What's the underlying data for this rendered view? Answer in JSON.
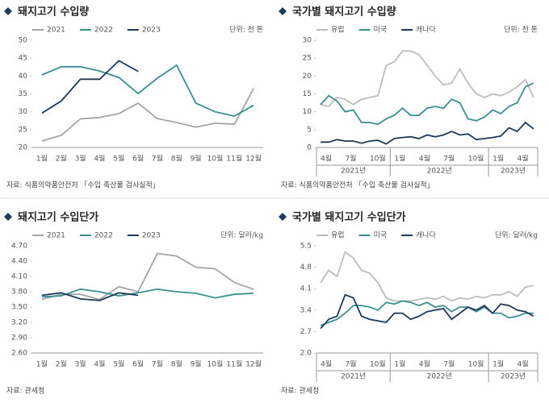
{
  "chart_data": [
    {
      "type": "line",
      "title": "돼지고기 수입량",
      "unit": "단위: 천 톤",
      "source": "자료: 식품의약품안전처 「수입 축산물 검사실적」",
      "categories": [
        "1월",
        "2월",
        "3월",
        "4월",
        "5월",
        "6월",
        "7월",
        "8월",
        "9월",
        "10월",
        "11월",
        "12월"
      ],
      "series": [
        {
          "name": "2021",
          "color": "#a6a6a6",
          "values": [
            21.8,
            23.4,
            28,
            28.4,
            29.5,
            32.4,
            28.1,
            27,
            25.7,
            26.8,
            26.5,
            36.5
          ]
        },
        {
          "name": "2022",
          "color": "#3a8f8f",
          "values": [
            40.3,
            42.6,
            42.6,
            41.4,
            39.6,
            35.1,
            39.4,
            43,
            32.4,
            30,
            28.8,
            31.8
          ]
        },
        {
          "name": "2023",
          "color": "#1f3a5a",
          "values": [
            29.6,
            33,
            39.1,
            39.1,
            44.3,
            41.3,
            null,
            null,
            null,
            null,
            null,
            null
          ]
        }
      ],
      "ylim": [
        20,
        50
      ],
      "yticks": [
        20,
        25,
        30,
        35,
        40,
        45,
        50
      ],
      "grid": false
    },
    {
      "type": "line",
      "title": "국가별 돼지고기 수입량",
      "unit": "단위: 천 톤",
      "source": "자료: 식품의약품안전처 「수입 축산물 검사실적」",
      "categories": [
        "4월",
        null,
        null,
        "7월",
        null,
        null,
        "10월",
        null,
        null,
        "1월",
        null,
        null,
        "4월",
        null,
        null,
        "7월",
        null,
        null,
        "10월",
        null,
        null,
        "1월",
        null,
        null,
        "4월",
        null,
        null
      ],
      "year_labels": [
        "2021년",
        "2022년",
        "2023년"
      ],
      "series": [
        {
          "name": "유럽",
          "color": "#bdbdbd",
          "values": [
            12,
            11.5,
            14,
            13.5,
            12,
            13.5,
            14,
            14.5,
            23,
            24,
            27,
            27,
            26,
            23,
            20,
            17.5,
            18,
            22,
            18,
            15,
            14,
            15,
            14.5,
            15.5,
            17,
            19,
            14
          ]
        },
        {
          "name": "미국",
          "color": "#3a8f8f",
          "values": [
            12,
            14.5,
            13,
            10,
            10.5,
            7,
            7,
            6.5,
            8,
            9,
            11,
            9,
            9,
            11,
            11.5,
            11,
            13.5,
            12.5,
            8,
            7.5,
            8.5,
            10.5,
            9.5,
            11.5,
            12.5,
            17,
            18
          ]
        },
        {
          "name": "캐나다",
          "color": "#1f3a5a",
          "values": [
            1.5,
            1.5,
            2.2,
            1.8,
            1.8,
            1.2,
            1.8,
            2,
            1,
            2.5,
            2.8,
            3,
            2.5,
            3.5,
            3,
            3.5,
            4.5,
            3.5,
            3.8,
            2.2,
            2.5,
            2.8,
            3.2,
            5.5,
            4.5,
            7,
            5.2
          ]
        }
      ],
      "ylim": [
        0,
        30
      ],
      "yticks": [
        0,
        5,
        10,
        15,
        20,
        25,
        30
      ],
      "grid": false
    },
    {
      "type": "line",
      "title": "돼지고기 수입단가",
      "unit": "단위: 달러/kg",
      "source": "자료: 관세청",
      "categories": [
        "1월",
        "2월",
        "3월",
        "4월",
        "5월",
        "6월",
        "7월",
        "8월",
        "9월",
        "10월",
        "11월",
        "12월"
      ],
      "series": [
        {
          "name": "2021",
          "color": "#a6a6a6",
          "values": [
            3.65,
            3.75,
            3.75,
            3.65,
            3.9,
            3.8,
            4.55,
            4.5,
            4.28,
            4.25,
            3.98,
            3.85
          ]
        },
        {
          "name": "2022",
          "color": "#3a8f8f",
          "values": [
            3.7,
            3.72,
            3.85,
            3.8,
            3.72,
            3.78,
            3.85,
            3.8,
            3.77,
            3.68,
            3.75,
            3.77
          ]
        },
        {
          "name": "2023",
          "color": "#1f3a5a",
          "values": [
            3.73,
            3.78,
            3.66,
            3.63,
            3.78,
            3.73,
            null,
            null,
            null,
            null,
            null,
            null
          ]
        }
      ],
      "ylim": [
        2.6,
        4.7
      ],
      "yticks": [
        {
          "value": 2.6,
          "label": "2.60"
        },
        {
          "value": 2.9,
          "label": "2.90"
        },
        {
          "value": 3.2,
          "label": "3.20"
        },
        {
          "value": 3.5,
          "label": "3.50"
        },
        {
          "value": 3.8,
          "label": "3.80"
        },
        {
          "value": 4.1,
          "label": "4.10"
        },
        {
          "value": 4.4,
          "label": "4.40"
        },
        {
          "value": 4.7,
          "label": "4.70"
        }
      ],
      "grid": false
    },
    {
      "type": "line",
      "title": "국가별 돼지고기 수입단가",
      "unit": "단위: 달러/kg",
      "source": "자료: 관세청",
      "categories": [
        "4월",
        null,
        null,
        "7월",
        null,
        null,
        "10월",
        null,
        null,
        "1월",
        null,
        null,
        "4월",
        null,
        null,
        "7월",
        null,
        null,
        "10월",
        null,
        null,
        "1월",
        null,
        null,
        "4월",
        null,
        null
      ],
      "year_labels": [
        "2021년",
        "2022년",
        "2023년"
      ],
      "series": [
        {
          "name": "유럽",
          "color": "#bdbdbd",
          "values": [
            4.3,
            4.7,
            4.5,
            5.3,
            5.1,
            4.7,
            4.6,
            4.3,
            3.8,
            3.7,
            3.7,
            3.7,
            3.75,
            3.8,
            3.75,
            3.85,
            3.7,
            3.8,
            3.75,
            3.85,
            3.8,
            3.9,
            3.9,
            4,
            3.85,
            4.15,
            4.2
          ]
        },
        {
          "name": "미국",
          "color": "#3a8f8f",
          "values": [
            2.9,
            3,
            3.1,
            3.3,
            3.55,
            3.55,
            3.5,
            3.4,
            3.65,
            3.6,
            3.7,
            3.65,
            3.55,
            3.65,
            3.5,
            3.55,
            3.35,
            3.5,
            3.5,
            3.35,
            3.5,
            3.3,
            3.3,
            3.15,
            3.2,
            3.3,
            3.3
          ]
        },
        {
          "name": "캐나다",
          "color": "#1f3a5a",
          "values": [
            2.8,
            3.1,
            3.2,
            3.9,
            3.8,
            3.2,
            3.1,
            3.05,
            3,
            3.3,
            3.3,
            3.1,
            3.2,
            3.35,
            3.4,
            3.45,
            3.1,
            3.3,
            3.5,
            3.4,
            3.55,
            3.3,
            3.6,
            3.55,
            3.4,
            3.35,
            3.2
          ]
        }
      ],
      "ylim": [
        2,
        5.5
      ],
      "yticks": [
        {
          "value": 2,
          "label": "2.0"
        },
        2.7,
        3.4,
        4.1,
        4.8,
        5.5
      ],
      "grid": false
    }
  ]
}
